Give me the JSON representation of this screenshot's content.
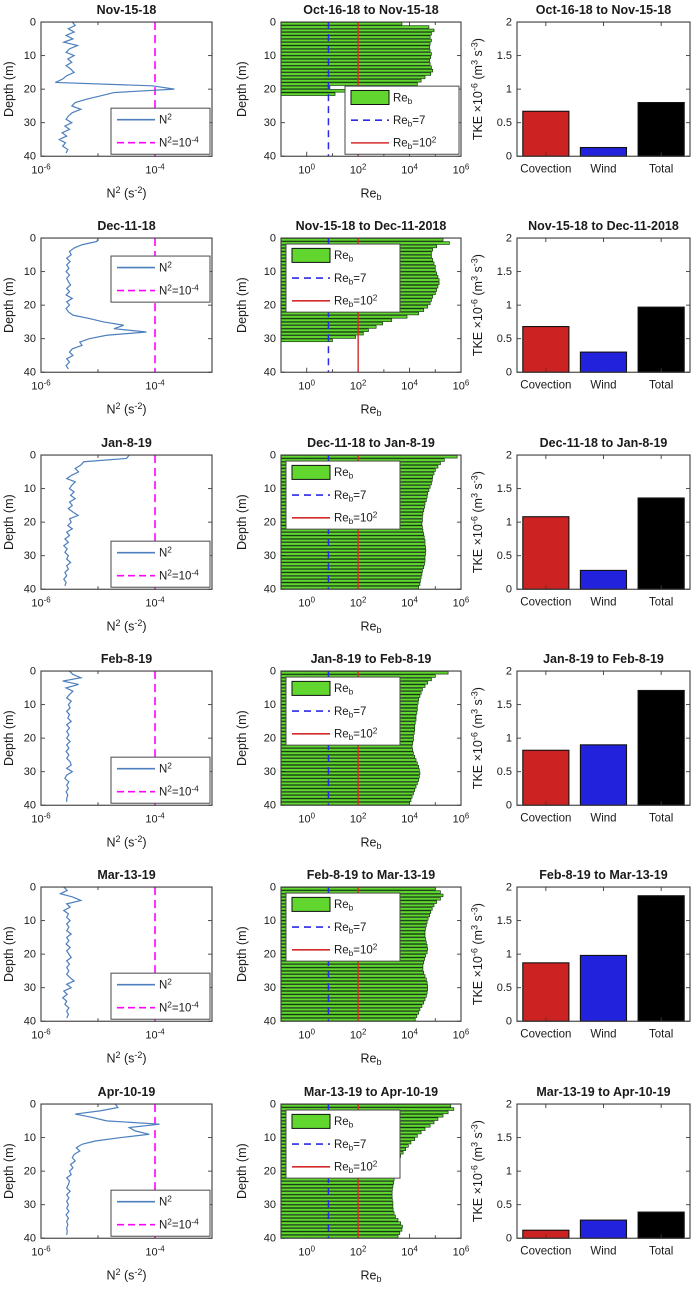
{
  "figure": {
    "background": "#ffffff"
  },
  "chart_data": {
    "profile_axes": {
      "type": "line",
      "xlabel": "N^2^ (s^-2^)",
      "ylabel": "Depth (m)",
      "xlim_log": [
        -6,
        -3
      ],
      "xticks": [
        {
          "log": -6,
          "label": "10^-6^"
        },
        {
          "log": -4,
          "label": "10^-4^"
        }
      ],
      "ylim": [
        0,
        40
      ],
      "yticks": [
        0,
        10,
        20,
        30,
        40
      ],
      "ref_log": -4,
      "legend": [
        "N^2^",
        "N^2^=10^-4^"
      ],
      "line_color": "#4d7fbe",
      "ref_color": "#ff00ff"
    },
    "reb_axes": {
      "type": "barh",
      "xlabel": "Re~b~",
      "ylabel": "Depth (m)",
      "xlim_log": [
        -1,
        6
      ],
      "xticks": [
        {
          "log": 0,
          "label": "10^0^"
        },
        {
          "log": 2,
          "label": "10^2^"
        },
        {
          "log": 4,
          "label": "10^4^"
        },
        {
          "log": 6,
          "label": "10^6^"
        }
      ],
      "ylim": [
        0,
        40
      ],
      "yticks": [
        0,
        10,
        20,
        30,
        40
      ],
      "ref1_log": 0.845,
      "ref2_log": 2,
      "legend": [
        "Re~b~",
        "Re~b~=7",
        "Re~b~=10^2^"
      ],
      "bar_fill": "#61d62e",
      "bar_edge": "#123a10",
      "ref1_color": "#2a2ae6",
      "ref2_color": "#d62b2b"
    },
    "tke_axes": {
      "type": "bar",
      "ylabel": "TKE ×10^-6^ (m^3^ s^-3^)",
      "categories": [
        "Covection",
        "Wind",
        "Total"
      ],
      "colors": [
        "#cc2222",
        "#2222dd",
        "#000000"
      ],
      "ylim": [
        0,
        2
      ],
      "yticks": [
        0,
        0.5,
        1,
        1.5,
        2
      ]
    },
    "rows": [
      {
        "profile": {
          "title": "Nov-15-18",
          "legend_pos": "bottom-right",
          "log_values": [
            -5.45,
            -5.4,
            -5.52,
            -5.42,
            -5.56,
            -5.44,
            -5.6,
            -5.36,
            -5.5,
            -5.56,
            -5.42,
            -5.53,
            -5.46,
            -5.56,
            -5.48,
            -5.42,
            -5.55,
            -5.62,
            -5.75,
            -4.05,
            -3.66,
            -4.72,
            -4.95,
            -5.2,
            -5.4,
            -5.46,
            -5.3,
            -5.45,
            -5.52,
            -5.56,
            -5.46,
            -5.58,
            -5.5,
            -5.63,
            -5.55,
            -5.68,
            -5.57,
            -5.62,
            -5.53,
            -5.56
          ]
        },
        "reb": {
          "title": "Oct-16-18 to Nov-15-18",
          "legend_pos": "bottom-right",
          "log_values": [
            3.7,
            4.75,
            4.95,
            4.85,
            4.8,
            4.85,
            4.8,
            4.78,
            4.8,
            4.85,
            4.82,
            4.78,
            4.8,
            4.85,
            4.9,
            4.82,
            4.6,
            4.45,
            4.3,
            0.9,
            2.6,
            1.1,
            null,
            null,
            null,
            null,
            null,
            null,
            null,
            null,
            null,
            null,
            null,
            null,
            null,
            null,
            null,
            null,
            null,
            null
          ]
        },
        "tke": {
          "title": "Oct-16-18 to Nov-15-18",
          "values": [
            0.67,
            0.13,
            0.8
          ]
        }
      },
      {
        "profile": {
          "title": "Dec-11-18",
          "legend_pos": "top-right",
          "log_values": [
            -5.0,
            -5.02,
            -5.28,
            -5.42,
            -5.5,
            -5.47,
            -5.55,
            -5.49,
            -5.55,
            -5.51,
            -5.56,
            -5.5,
            -5.55,
            -5.52,
            -5.48,
            -5.55,
            -5.5,
            -5.56,
            -5.45,
            -5.55,
            -5.5,
            -5.56,
            -5.52,
            -5.44,
            -5.15,
            -4.9,
            -4.55,
            -4.72,
            -4.15,
            -4.85,
            -5.15,
            -5.32,
            -5.28,
            -5.45,
            -5.5,
            -5.44,
            -5.55,
            -5.5,
            -5.56,
            -5.52
          ]
        },
        "reb": {
          "title": "Nov-15-18 to Dec-11-2018",
          "legend_pos": "top-left",
          "log_values": [
            5.3,
            5.55,
            5.05,
            4.9,
            4.85,
            4.85,
            4.9,
            4.95,
            5.0,
            5.0,
            5.05,
            5.1,
            5.15,
            5.15,
            5.1,
            5.05,
            5.0,
            4.9,
            4.85,
            4.8,
            4.7,
            4.55,
            4.35,
            3.9,
            3.3,
            2.95,
            2.7,
            2.4,
            2.2,
            1.9,
            1.0,
            null,
            null,
            null,
            null,
            null,
            null,
            null,
            null,
            null
          ]
        },
        "tke": {
          "title": "Nov-15-18 to Dec-11-2018",
          "values": [
            0.68,
            0.3,
            0.97
          ]
        }
      },
      {
        "profile": {
          "title": "Jan-8-19",
          "legend_pos": "bottom-right",
          "log_values": [
            -4.45,
            -4.5,
            -5.25,
            -5.3,
            -5.4,
            -5.34,
            -5.46,
            -5.55,
            -5.4,
            -5.46,
            -5.5,
            -5.42,
            -5.48,
            -5.4,
            -5.5,
            -5.45,
            -5.52,
            -5.44,
            -5.35,
            -5.5,
            -5.47,
            -5.53,
            -5.45,
            -5.55,
            -5.5,
            -5.58,
            -5.52,
            -5.6,
            -5.54,
            -5.58,
            -5.52,
            -5.55,
            -5.48,
            -5.55,
            -5.52,
            -5.58,
            -5.55,
            -5.6,
            -5.56,
            -5.58
          ]
        },
        "reb": {
          "title": "Dec-11-18 to Jan-8-19",
          "legend_pos": "top-left",
          "log_values": [
            5.85,
            5.35,
            5.2,
            5.1,
            5.0,
            4.95,
            4.9,
            4.88,
            4.85,
            4.8,
            4.75,
            4.7,
            4.68,
            4.65,
            4.6,
            4.58,
            4.55,
            4.52,
            4.5,
            4.5,
            4.48,
            4.5,
            4.52,
            4.55,
            4.57,
            4.6,
            4.6,
            4.62,
            4.63,
            4.62,
            4.6,
            4.6,
            4.58,
            4.55,
            4.5,
            4.48,
            4.45,
            4.42,
            4.4,
            4.35
          ]
        },
        "tke": {
          "title": "Dec-11-18 to Jan-8-19",
          "values": [
            1.08,
            0.28,
            1.36
          ]
        }
      },
      {
        "profile": {
          "title": "Feb-8-19",
          "legend_pos": "bottom-right",
          "log_values": [
            -5.5,
            -5.44,
            -5.3,
            -5.62,
            -5.34,
            -5.56,
            -5.44,
            -5.5,
            -5.55,
            -5.47,
            -5.52,
            -5.49,
            -5.55,
            -5.5,
            -5.53,
            -5.47,
            -5.55,
            -5.5,
            -5.55,
            -5.51,
            -5.55,
            -5.49,
            -5.55,
            -5.51,
            -5.56,
            -5.51,
            -5.55,
            -5.49,
            -5.47,
            -5.55,
            -5.45,
            -5.55,
            -5.58,
            -5.51,
            -5.55,
            -5.52,
            -5.56,
            -5.53,
            -5.55,
            -5.55
          ]
        },
        "reb": {
          "title": "Jan-8-19 to Feb-8-19",
          "legend_pos": "top-left",
          "log_values": [
            5.5,
            5.0,
            4.85,
            4.7,
            4.6,
            4.5,
            4.45,
            4.4,
            4.35,
            4.33,
            4.3,
            4.3,
            4.28,
            4.25,
            4.25,
            4.22,
            4.2,
            4.2,
            4.18,
            4.15,
            4.15,
            4.12,
            4.1,
            4.12,
            4.15,
            4.2,
            4.25,
            4.3,
            4.35,
            4.38,
            4.4,
            4.38,
            4.35,
            4.3,
            4.25,
            4.2,
            4.15,
            4.1,
            4.05,
            4.0
          ]
        },
        "tke": {
          "title": "Jan-8-19 to Feb-8-19",
          "values": [
            0.82,
            0.9,
            1.71
          ]
        }
      },
      {
        "profile": {
          "title": "Mar-13-19",
          "legend_pos": "bottom-right",
          "log_values": [
            -5.6,
            -5.54,
            -5.66,
            -5.44,
            -5.3,
            -5.55,
            -5.49,
            -5.6,
            -5.52,
            -5.55,
            -5.49,
            -5.55,
            -5.51,
            -5.55,
            -5.47,
            -5.55,
            -5.51,
            -5.56,
            -5.49,
            -5.55,
            -5.51,
            -5.47,
            -5.55,
            -5.5,
            -5.55,
            -5.51,
            -5.55,
            -5.49,
            -5.42,
            -5.55,
            -5.47,
            -5.6,
            -5.54,
            -5.62,
            -5.55,
            -5.58,
            -5.51,
            -5.55,
            -5.52,
            -5.55
          ]
        },
        "reb": {
          "title": "Feb-8-19 to Mar-13-19",
          "legend_pos": "top-left",
          "log_values": [
            5.0,
            5.2,
            5.3,
            5.2,
            5.05,
            4.95,
            4.88,
            4.82,
            4.78,
            4.72,
            4.68,
            4.65,
            4.62,
            4.6,
            4.6,
            4.62,
            4.65,
            4.68,
            4.7,
            4.68,
            4.62,
            4.58,
            4.55,
            4.52,
            4.52,
            4.55,
            4.6,
            4.65,
            4.68,
            4.7,
            4.7,
            4.68,
            4.65,
            4.6,
            4.55,
            4.48,
            4.4,
            4.35,
            4.28,
            4.22
          ]
        },
        "tke": {
          "title": "Feb-8-19 to Mar-13-19",
          "values": [
            0.87,
            0.98,
            1.87
          ]
        }
      },
      {
        "profile": {
          "title": "Apr-10-19",
          "legend_pos": "bottom-right",
          "log_values": [
            -4.7,
            -4.65,
            -4.95,
            -5.4,
            -5.1,
            -4.85,
            -3.92,
            -4.45,
            -4.35,
            -4.1,
            -4.6,
            -5.05,
            -5.28,
            -5.38,
            -5.32,
            -5.42,
            -5.45,
            -5.4,
            -5.48,
            -5.44,
            -5.5,
            -5.47,
            -5.55,
            -5.5,
            -5.52,
            -5.55,
            -5.49,
            -5.55,
            -5.51,
            -5.55,
            -5.52,
            -5.55,
            -5.51,
            -5.56,
            -5.52,
            -5.55,
            -5.53,
            -5.55,
            -5.54,
            -5.55
          ]
        },
        "reb": {
          "title": "Mar-13-19 to Apr-10-19",
          "legend_pos": "top-left",
          "log_values": [
            5.6,
            5.72,
            5.5,
            5.3,
            5.1,
            4.95,
            4.8,
            4.6,
            4.45,
            4.3,
            4.2,
            4.05,
            3.95,
            3.85,
            3.75,
            3.65,
            3.6,
            3.55,
            3.5,
            3.48,
            3.45,
            3.42,
            3.4,
            3.38,
            3.35,
            3.33,
            3.32,
            3.32,
            3.33,
            3.35,
            3.35,
            3.36,
            3.4,
            3.45,
            3.55,
            3.65,
            3.72,
            3.7,
            3.62,
            3.55
          ]
        },
        "tke": {
          "title": "Mar-13-19 to Apr-10-19",
          "values": [
            0.12,
            0.27,
            0.39
          ]
        }
      }
    ]
  }
}
